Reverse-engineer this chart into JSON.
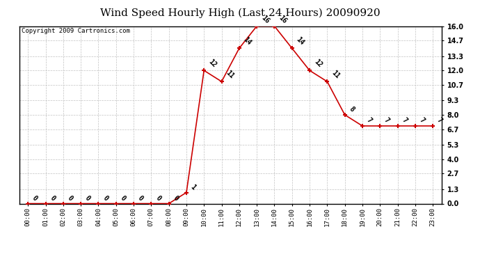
{
  "title": "Wind Speed Hourly High (Last 24 Hours) 20090920",
  "copyright": "Copyright 2009 Cartronics.com",
  "hours": [
    "00:00",
    "01:00",
    "02:00",
    "03:00",
    "04:00",
    "05:00",
    "06:00",
    "07:00",
    "08:00",
    "09:00",
    "10:00",
    "11:00",
    "12:00",
    "13:00",
    "14:00",
    "15:00",
    "16:00",
    "17:00",
    "18:00",
    "19:00",
    "20:00",
    "21:00",
    "22:00",
    "23:00"
  ],
  "values": [
    0,
    0,
    0,
    0,
    0,
    0,
    0,
    0,
    0,
    1,
    12,
    11,
    14,
    16,
    16,
    14,
    12,
    11,
    8,
    7,
    7,
    7,
    7,
    7
  ],
  "line_color": "#cc0000",
  "marker_color": "#cc0000",
  "bg_color": "#ffffff",
  "grid_color": "#bbbbbb",
  "title_fontsize": 11,
  "copyright_fontsize": 6.5,
  "label_fontsize": 7,
  "tick_fontsize": 6.5,
  "ylim": [
    0.0,
    16.0
  ],
  "yticks": [
    0.0,
    1.3,
    2.7,
    4.0,
    5.3,
    6.7,
    8.0,
    9.3,
    10.7,
    12.0,
    13.3,
    14.7,
    16.0
  ],
  "ytick_labels": [
    "0.0",
    "1.3",
    "2.7",
    "4.0",
    "5.3",
    "6.7",
    "8.0",
    "9.3",
    "10.7",
    "12.0",
    "13.3",
    "14.7",
    "16.0"
  ]
}
